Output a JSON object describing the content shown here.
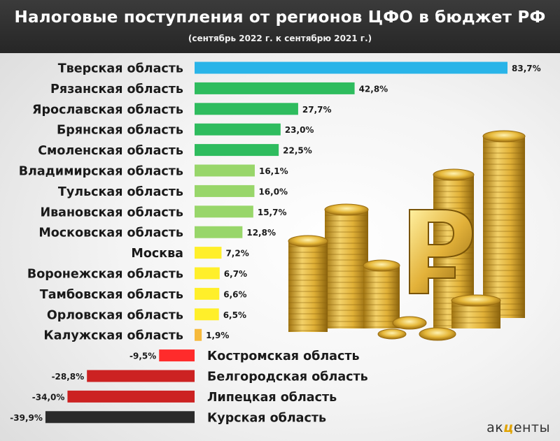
{
  "header": {
    "title": "Налоговые поступления от регионов ЦФО в бюджет РФ",
    "subtitle": "(сентябрь 2022 г. к сентябрю 2021 г.)"
  },
  "logo": {
    "pre": "ак",
    "mid": "ц",
    "post": "енты"
  },
  "colors": {
    "top": "#29b4e8",
    "high": "#2ebc5e",
    "mid": "#98d66a",
    "low": "#ffef2a",
    "lowest": "#f6b93b",
    "negative": "#ff2b2b",
    "deep_negative": "#cc2222",
    "worst": "#2a2a2a"
  },
  "chart_data": {
    "type": "bar",
    "orientation": "horizontal",
    "title": "Налоговые поступления от регионов ЦФО в бюджет РФ",
    "subtitle": "(сентябрь 2022 г. к сентябрю 2021 г.)",
    "categories": [
      "Тверская область",
      "Рязанская область",
      "Ярославская область",
      "Брянская область",
      "Смоленская область",
      "Владимирская область",
      "Тульская область",
      "Ивановская область",
      "Московская область",
      "Москва",
      "Воронежская область",
      "Тамбовская область",
      "Орловская область",
      "Калужская область",
      "Костромская область",
      "Белгородская область",
      "Липецкая область",
      "Курская область"
    ],
    "values": [
      83.7,
      42.8,
      27.7,
      23.0,
      22.5,
      16.1,
      16.0,
      15.7,
      12.8,
      7.2,
      6.7,
      6.6,
      6.5,
      1.9,
      -9.5,
      -28.8,
      -34.0,
      -39.9
    ],
    "labels": [
      "83,7%",
      "42,8%",
      "27,7%",
      "23,0%",
      "22,5%",
      "16,1%",
      "16,0%",
      "15,7%",
      "12,8%",
      "7,2%",
      "6,7%",
      "6,6%",
      "6,5%",
      "1,9%",
      "-9,5%",
      "-28,8%",
      "-34,0%",
      "-39,9%"
    ],
    "bar_colors": [
      "top",
      "high",
      "high",
      "high",
      "high",
      "mid",
      "mid",
      "mid",
      "mid",
      "low",
      "low",
      "low",
      "low",
      "lowest",
      "negative",
      "deep_negative",
      "deep_negative",
      "worst"
    ],
    "xlabel": "",
    "ylabel": "",
    "grid": false,
    "legend": "none"
  }
}
